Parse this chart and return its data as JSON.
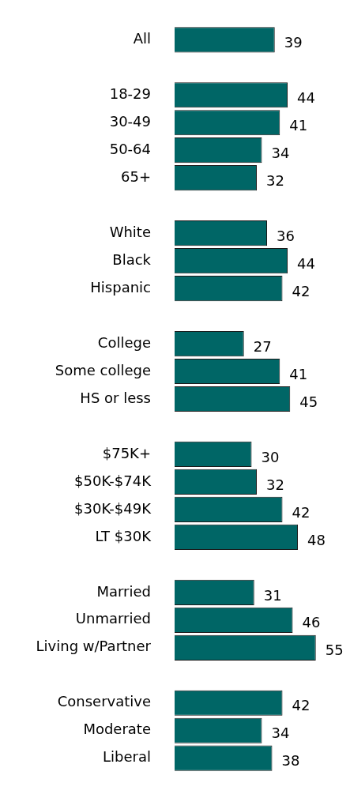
{
  "chart_data": {
    "type": "bar",
    "orientation": "horizontal",
    "categories": [
      "All",
      null,
      "18-29",
      "30-49",
      "50-64",
      "65+",
      null,
      "White",
      "Black",
      "Hispanic",
      null,
      "College",
      "Some college",
      "HS or less",
      null,
      "$75K+",
      "$50K-$74K",
      "$30K-$49K",
      "LT $30K",
      null,
      "Married",
      "Unmarried",
      "Living w/Partner",
      null,
      "Conservative",
      "Moderate",
      "Liberal"
    ],
    "values": [
      39,
      null,
      44,
      41,
      34,
      32,
      null,
      36,
      44,
      42,
      null,
      27,
      41,
      45,
      null,
      30,
      32,
      42,
      48,
      null,
      31,
      46,
      55,
      null,
      42,
      34,
      38
    ],
    "color": "#006666",
    "data_labels": true,
    "tick_labels": "y",
    "legend": false
  }
}
